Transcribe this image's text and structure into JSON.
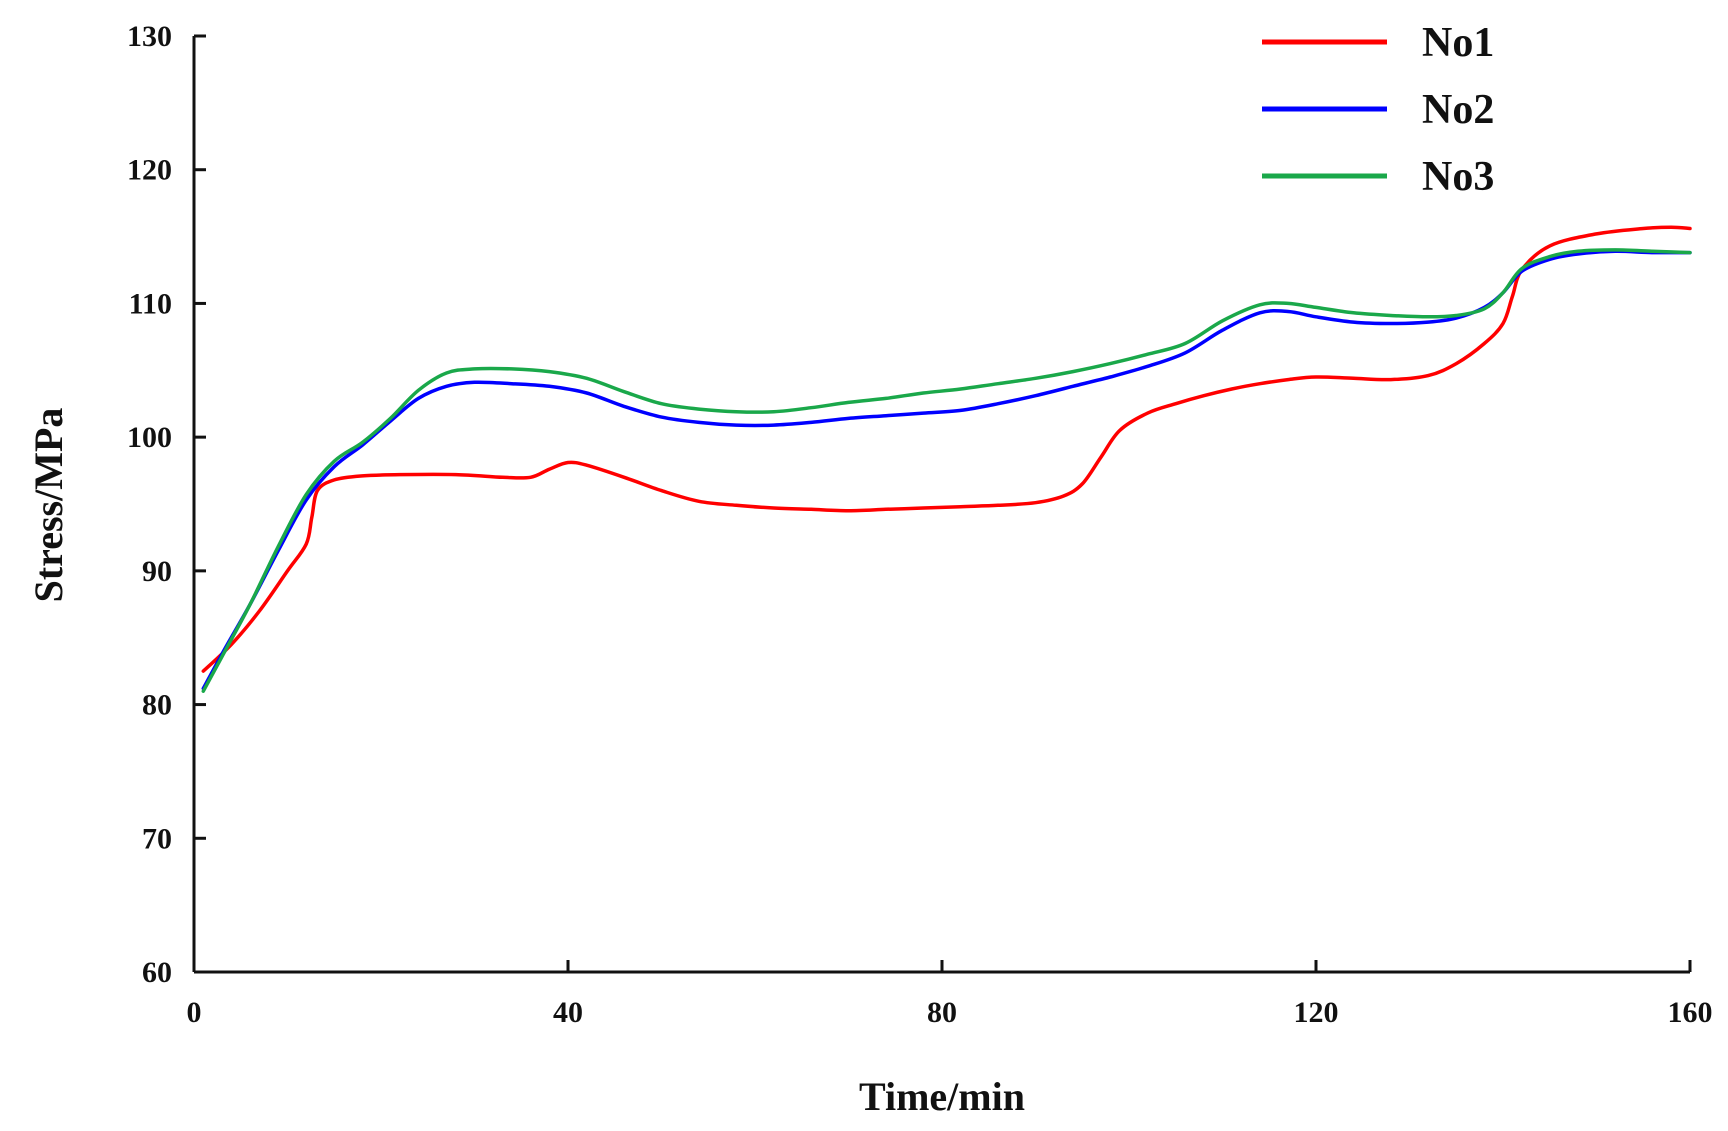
{
  "chart_data": {
    "type": "line",
    "title": "",
    "xlabel": "Time/min",
    "ylabel": "Stress/MPa",
    "xlim": [
      0,
      160
    ],
    "ylim": [
      60,
      130
    ],
    "xticks": [
      0,
      40,
      80,
      120,
      160
    ],
    "xtick_labels": [
      "0",
      "40",
      "80",
      "120",
      "160"
    ],
    "yticks": [
      60,
      70,
      80,
      90,
      100,
      110,
      120,
      130
    ],
    "ytick_labels": [
      "60",
      "70",
      "80",
      "90",
      "100",
      "110",
      "120",
      "130"
    ],
    "grid": false,
    "legend_position": "top-right",
    "series": [
      {
        "name": "No1",
        "color": "#ff0000",
        "points": [
          [
            1,
            82.5
          ],
          [
            4,
            84.5
          ],
          [
            7,
            87
          ],
          [
            10,
            90
          ],
          [
            12,
            92
          ],
          [
            12.6,
            94
          ],
          [
            13.2,
            96
          ],
          [
            15,
            96.8
          ],
          [
            18,
            97.1
          ],
          [
            22,
            97.2
          ],
          [
            28,
            97.2
          ],
          [
            33,
            97
          ],
          [
            36,
            97
          ],
          [
            38,
            97.6
          ],
          [
            40,
            98.1
          ],
          [
            42,
            97.9
          ],
          [
            46,
            97
          ],
          [
            50,
            96
          ],
          [
            54,
            95.2
          ],
          [
            58,
            94.9
          ],
          [
            62,
            94.7
          ],
          [
            66,
            94.6
          ],
          [
            70,
            94.5
          ],
          [
            74,
            94.6
          ],
          [
            78,
            94.7
          ],
          [
            82,
            94.8
          ],
          [
            86,
            94.9
          ],
          [
            90,
            95.1
          ],
          [
            93,
            95.6
          ],
          [
            95,
            96.5
          ],
          [
            97,
            98.5
          ],
          [
            99,
            100.5
          ],
          [
            102,
            101.8
          ],
          [
            105,
            102.5
          ],
          [
            108,
            103.1
          ],
          [
            111,
            103.6
          ],
          [
            114,
            104
          ],
          [
            117,
            104.3
          ],
          [
            120,
            104.5
          ],
          [
            124,
            104.4
          ],
          [
            128,
            104.3
          ],
          [
            132,
            104.6
          ],
          [
            135,
            105.5
          ],
          [
            138,
            107
          ],
          [
            140,
            108.5
          ],
          [
            141,
            110.5
          ],
          [
            142,
            112.5
          ],
          [
            145,
            114.3
          ],
          [
            150,
            115.2
          ],
          [
            155,
            115.6
          ],
          [
            158,
            115.7
          ],
          [
            160,
            115.6
          ]
        ]
      },
      {
        "name": "No2",
        "color": "#0000ff",
        "points": [
          [
            1,
            81.2
          ],
          [
            3,
            83.8
          ],
          [
            6,
            87.5
          ],
          [
            9,
            91.5
          ],
          [
            12,
            95.3
          ],
          [
            15,
            97.8
          ],
          [
            18,
            99.4
          ],
          [
            21,
            101.2
          ],
          [
            24,
            102.9
          ],
          [
            27,
            103.8
          ],
          [
            30,
            104.1
          ],
          [
            34,
            104
          ],
          [
            38,
            103.8
          ],
          [
            42,
            103.3
          ],
          [
            46,
            102.3
          ],
          [
            50,
            101.5
          ],
          [
            54,
            101.1
          ],
          [
            58,
            100.9
          ],
          [
            62,
            100.9
          ],
          [
            66,
            101.1
          ],
          [
            70,
            101.4
          ],
          [
            74,
            101.6
          ],
          [
            78,
            101.8
          ],
          [
            82,
            102
          ],
          [
            86,
            102.5
          ],
          [
            90,
            103.1
          ],
          [
            94,
            103.8
          ],
          [
            98,
            104.5
          ],
          [
            102,
            105.3
          ],
          [
            106,
            106.3
          ],
          [
            110,
            108
          ],
          [
            114,
            109.3
          ],
          [
            117,
            109.4
          ],
          [
            120,
            109
          ],
          [
            124,
            108.6
          ],
          [
            128,
            108.5
          ],
          [
            132,
            108.6
          ],
          [
            135,
            108.9
          ],
          [
            138,
            109.7
          ],
          [
            140,
            110.8
          ],
          [
            142,
            112.4
          ],
          [
            145,
            113.3
          ],
          [
            148,
            113.7
          ],
          [
            152,
            113.9
          ],
          [
            156,
            113.8
          ],
          [
            160,
            113.8
          ]
        ]
      },
      {
        "name": "No3",
        "color": "#1aa84a",
        "points": [
          [
            1,
            81
          ],
          [
            3,
            83.6
          ],
          [
            6,
            87.5
          ],
          [
            9,
            91.8
          ],
          [
            12,
            95.7
          ],
          [
            15,
            98.2
          ],
          [
            18,
            99.6
          ],
          [
            21,
            101.4
          ],
          [
            24,
            103.5
          ],
          [
            27,
            104.8
          ],
          [
            30,
            105.1
          ],
          [
            34,
            105.1
          ],
          [
            38,
            104.9
          ],
          [
            42,
            104.4
          ],
          [
            46,
            103.4
          ],
          [
            50,
            102.5
          ],
          [
            54,
            102.1
          ],
          [
            58,
            101.9
          ],
          [
            62,
            101.9
          ],
          [
            66,
            102.2
          ],
          [
            70,
            102.6
          ],
          [
            74,
            102.9
          ],
          [
            78,
            103.3
          ],
          [
            82,
            103.6
          ],
          [
            86,
            104
          ],
          [
            90,
            104.4
          ],
          [
            94,
            104.9
          ],
          [
            98,
            105.5
          ],
          [
            102,
            106.2
          ],
          [
            106,
            107
          ],
          [
            110,
            108.7
          ],
          [
            114,
            109.9
          ],
          [
            117,
            110
          ],
          [
            120,
            109.7
          ],
          [
            124,
            109.3
          ],
          [
            128,
            109.1
          ],
          [
            132,
            109
          ],
          [
            135,
            109.1
          ],
          [
            138,
            109.6
          ],
          [
            140,
            110.8
          ],
          [
            142,
            112.6
          ],
          [
            145,
            113.5
          ],
          [
            148,
            113.9
          ],
          [
            152,
            114
          ],
          [
            156,
            113.9
          ],
          [
            160,
            113.8
          ]
        ]
      }
    ]
  }
}
